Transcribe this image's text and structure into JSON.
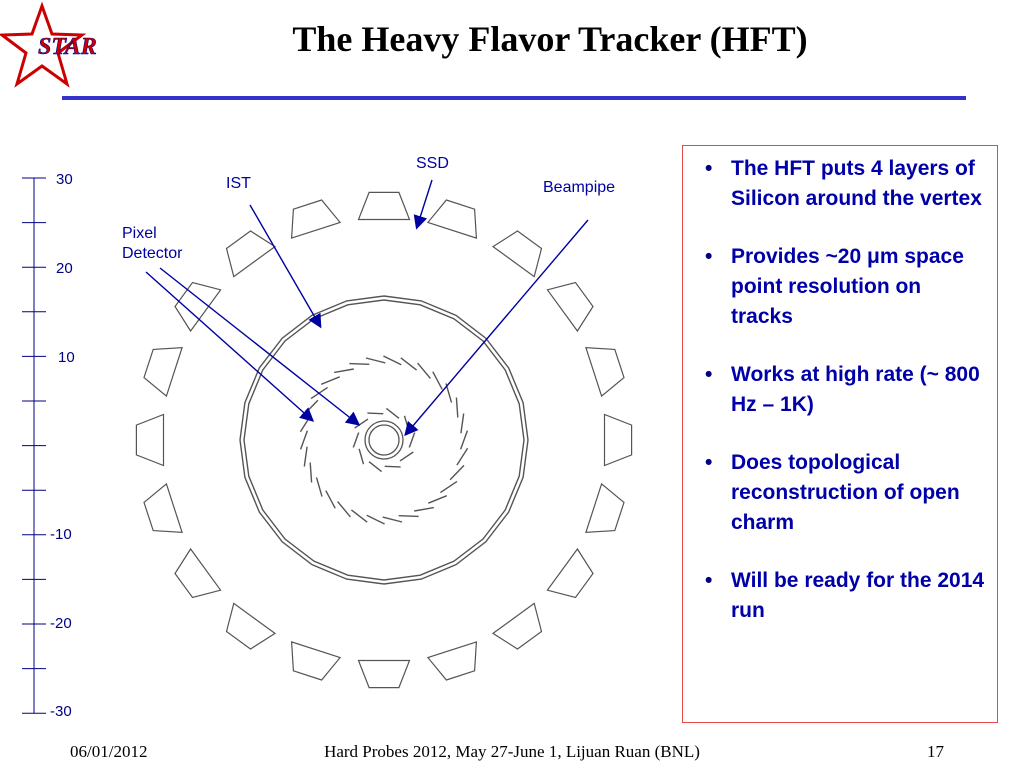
{
  "logo": {
    "text": "STAR",
    "icon": "star-icon",
    "color": "#cc0000"
  },
  "title": "The Heavy Flavor Tracker (HFT)",
  "accent_color": "#3333cc",
  "diagram": {
    "labels": {
      "ssd": "SSD",
      "ist": "IST",
      "beampipe": "Beampipe",
      "pixel_line1": "Pixel",
      "pixel_line2": "Detector"
    },
    "scale_ticks": [
      "30",
      "20",
      "10",
      "-10",
      "-20",
      "-30"
    ]
  },
  "bullets": [
    "The HFT puts 4 layers of Silicon around the vertex",
    "Provides ~20 μm space point resolution on tracks",
    "Works at high rate (~ 800 Hz – 1K)",
    "Does topological reconstruction of open charm",
    "Will be ready for the 2014 run"
  ],
  "footer": {
    "date": "06/01/2012",
    "center": "Hard Probes 2012, May 27-June 1, Lijuan Ruan (BNL)",
    "page": "17"
  }
}
